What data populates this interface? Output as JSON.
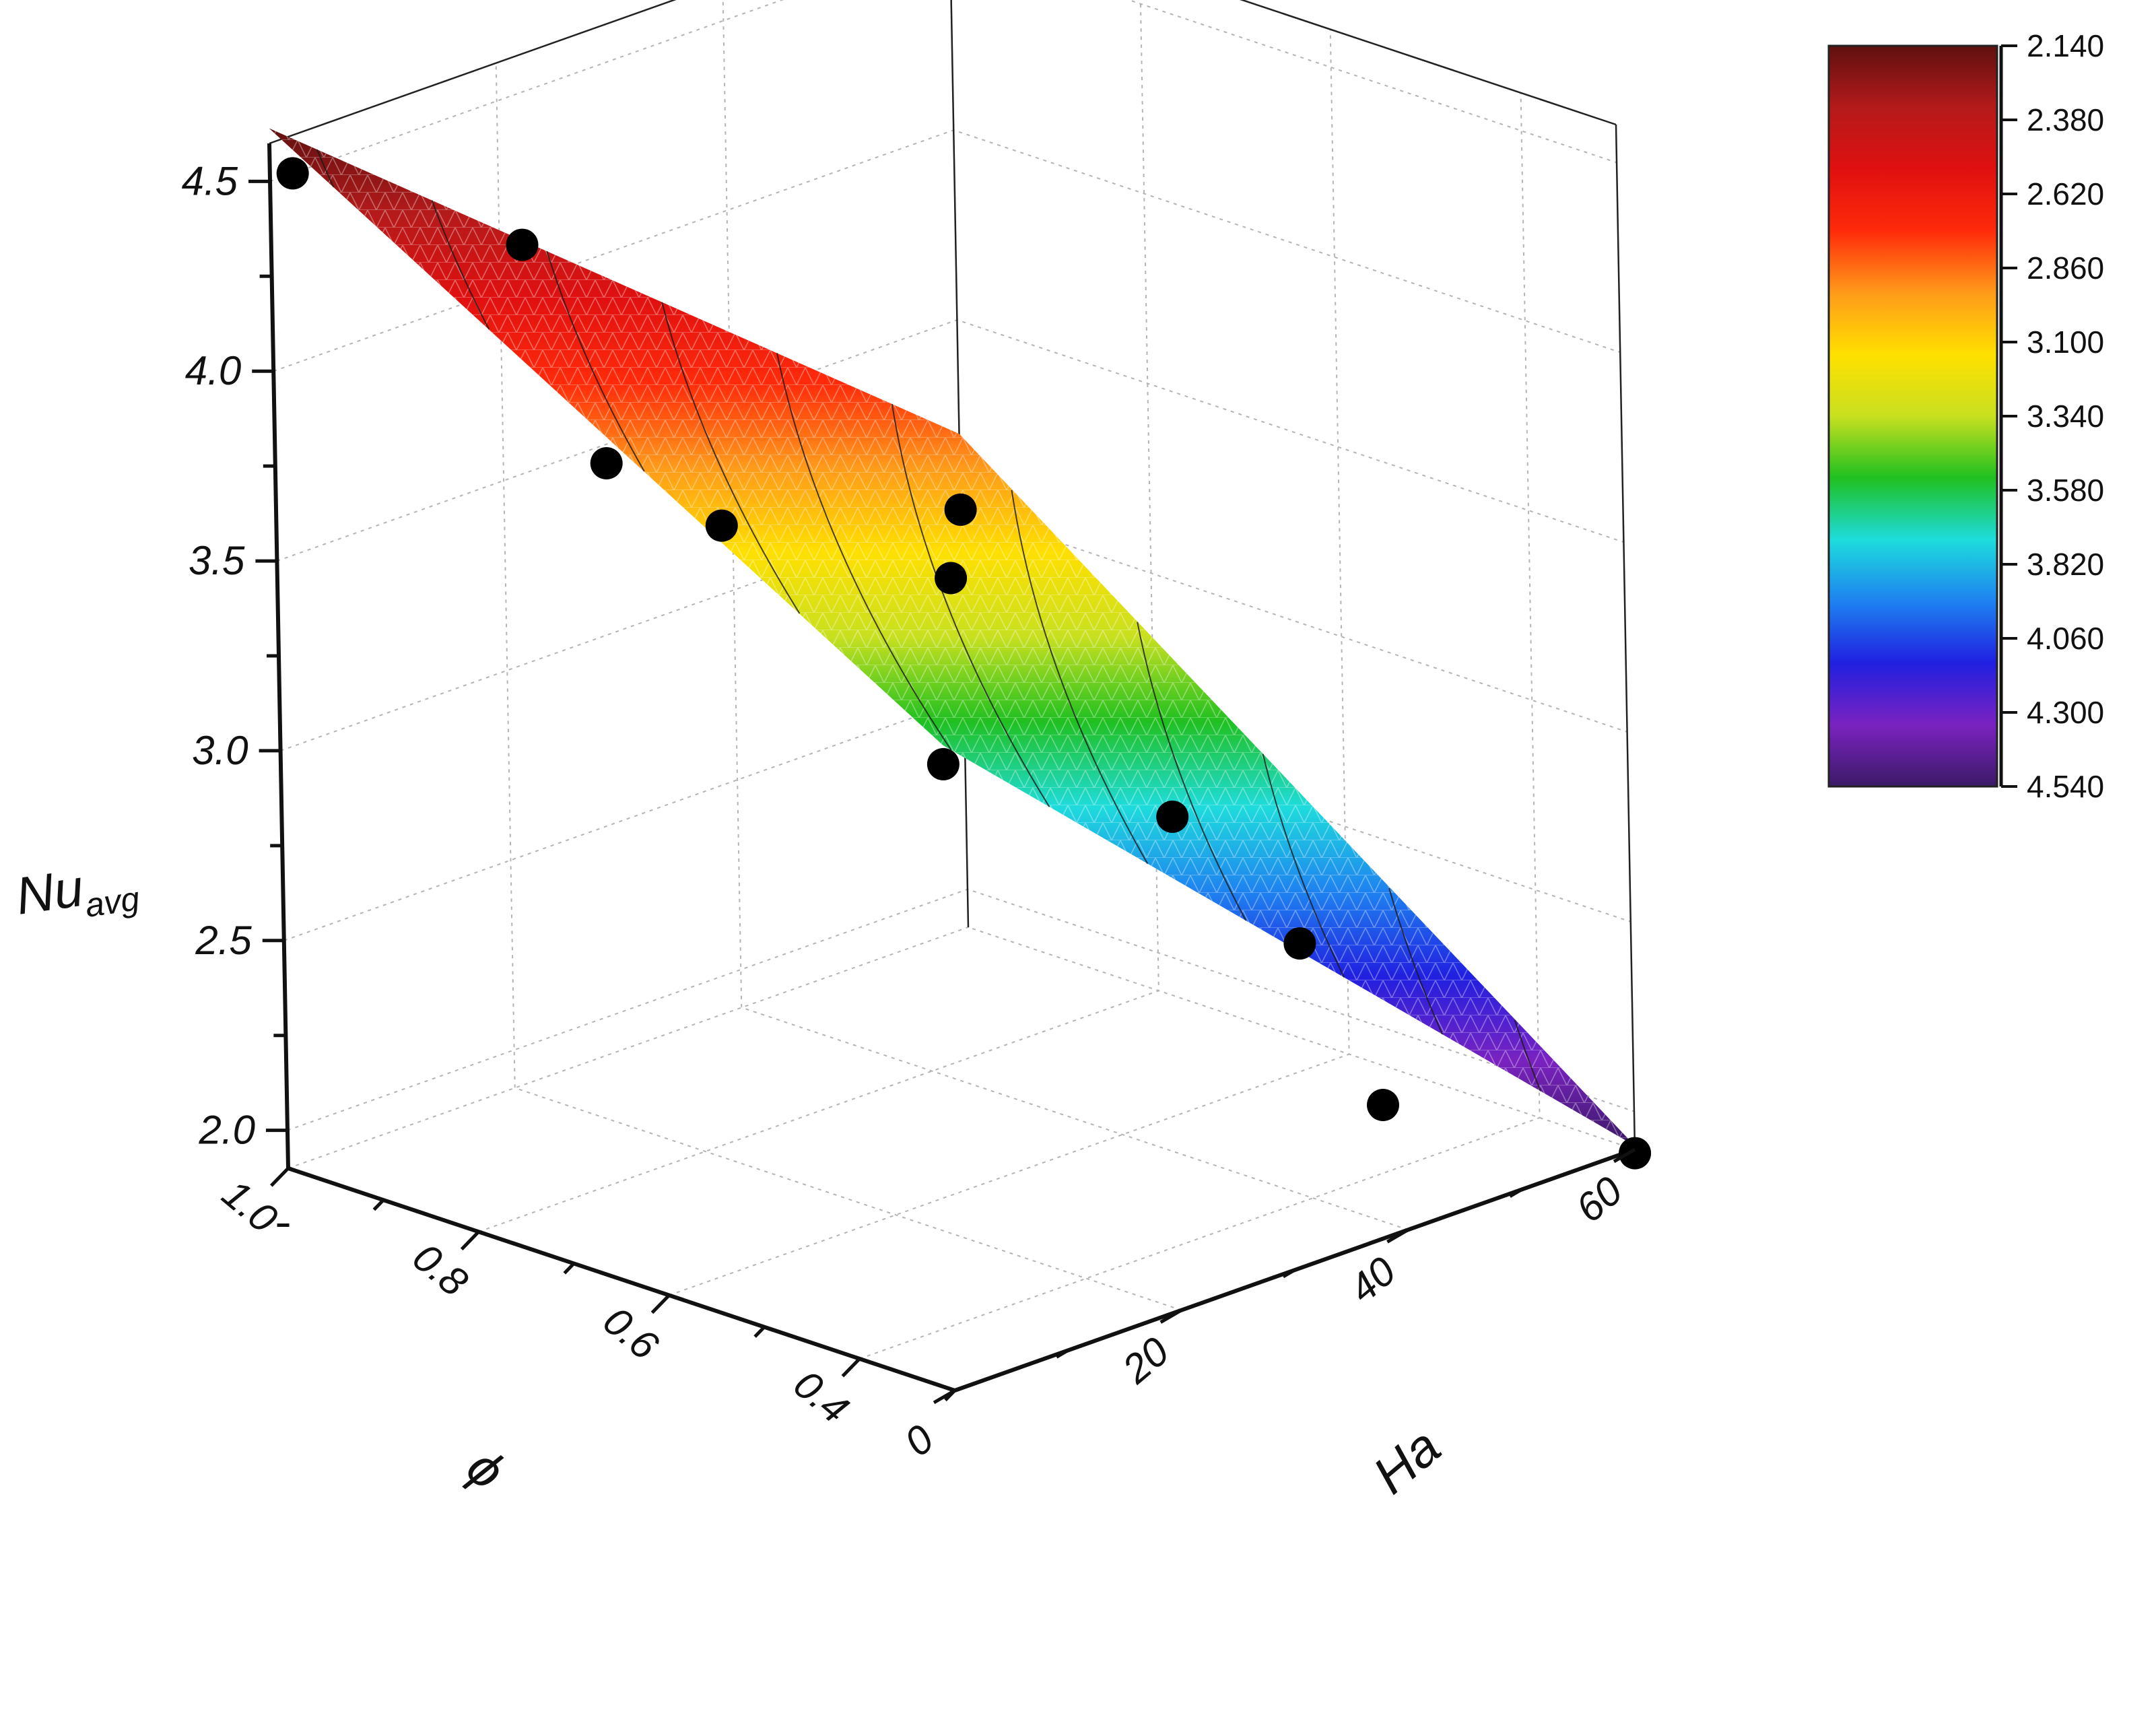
{
  "chart_data": {
    "type": "surface3d",
    "axes": {
      "x": {
        "label": "Ha",
        "range": [
          0,
          60
        ],
        "ticks": [
          "0",
          "20",
          "40",
          "60"
        ]
      },
      "y": {
        "label": "ϕ",
        "range": [
          0.3,
          1.0
        ],
        "ticks": [
          "0.4",
          "0.6",
          "0.8",
          "1.0"
        ]
      },
      "z": {
        "label_main": "Nu",
        "label_sub": "avg",
        "range": [
          1.9,
          4.6
        ],
        "ticks": [
          "2.0",
          "2.5",
          "3.0",
          "3.5",
          "4.0",
          "4.5"
        ]
      }
    },
    "grid": true,
    "colorbar": {
      "placement": "right",
      "labels": [
        "2.140",
        "2.380",
        "2.620",
        "2.860",
        "3.100",
        "3.340",
        "3.580",
        "3.820",
        "4.060",
        "4.300",
        "4.540"
      ],
      "colors": [
        "#3a1a66",
        "#7a22c0",
        "#2020e0",
        "#1e82f0",
        "#1edcdc",
        "#20c020",
        "#c8e020",
        "#ffe000",
        "#ff9a1a",
        "#ff2a0a",
        "#e01010",
        "#b41a1a",
        "#601010"
      ]
    },
    "surface": {
      "corners": [
        {
          "Ha": 0,
          "phi": 0.3,
          "Nu": 3.6
        },
        {
          "Ha": 60,
          "phi": 0.3,
          "Nu": 1.91
        },
        {
          "Ha": 60,
          "phi": 1.0,
          "Nu": 3.2
        },
        {
          "Ha": 0,
          "phi": 1.0,
          "Nu": 4.64
        }
      ],
      "contour_levels": [
        2.14,
        2.38,
        2.62,
        2.86,
        3.1,
        3.34,
        3.58,
        3.82,
        4.06,
        4.3,
        4.54
      ]
    },
    "points": [
      {
        "Ha": 2,
        "phi": 1.0,
        "Nu": 4.5
      },
      {
        "Ha": 22,
        "phi": 1.0,
        "Nu": 4.1
      },
      {
        "Ha": 0,
        "phi": 0.65,
        "Nu": 4.05
      },
      {
        "Ha": 10,
        "phi": 0.65,
        "Nu": 3.78
      },
      {
        "Ha": 0,
        "phi": 0.3,
        "Nu": 3.55
      },
      {
        "Ha": 30,
        "phi": 0.65,
        "Nu": 3.43
      },
      {
        "Ha": 20,
        "phi": 0.3,
        "Nu": 3.2
      },
      {
        "Ha": 60,
        "phi": 1.0,
        "Nu": 3.0
      },
      {
        "Ha": 60,
        "phi": 0.65,
        "Nu": 2.15
      },
      {
        "Ha": 60,
        "phi": 0.3,
        "Nu": 1.89
      },
      {
        "Ha": 38,
        "phi": 0.3,
        "Nu": 2.25
      }
    ]
  }
}
